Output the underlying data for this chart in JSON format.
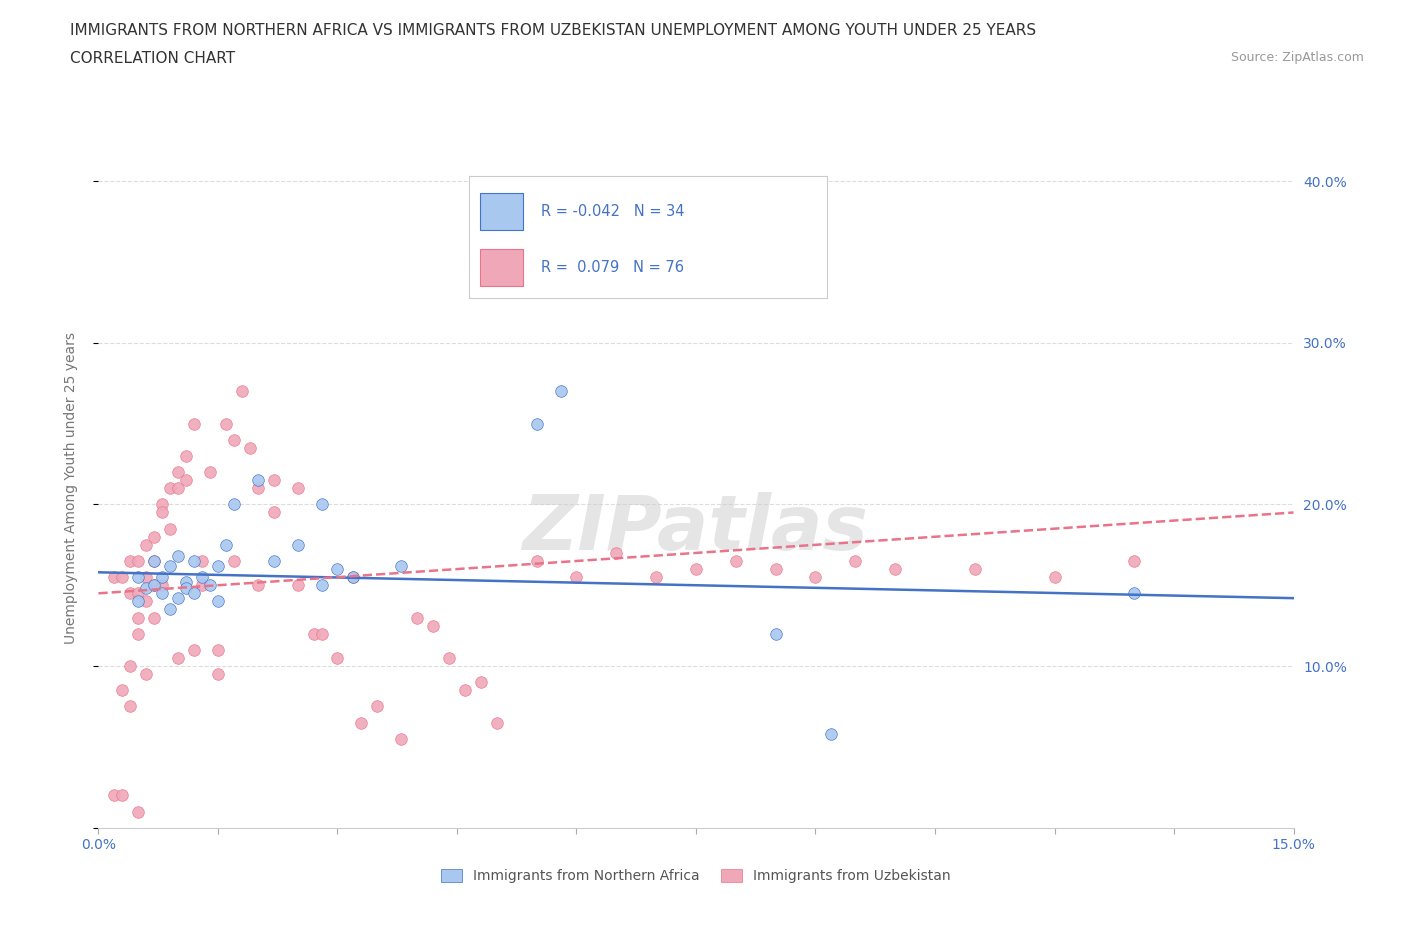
{
  "title_line1": "IMMIGRANTS FROM NORTHERN AFRICA VS IMMIGRANTS FROM UZBEKISTAN UNEMPLOYMENT AMONG YOUTH UNDER 25 YEARS",
  "title_line2": "CORRELATION CHART",
  "source_text": "Source: ZipAtlas.com",
  "ylabel_label": "Unemployment Among Youth under 25 years",
  "right_yticks": [
    "40.0%",
    "30.0%",
    "20.0%",
    "10.0%"
  ],
  "right_ytick_vals": [
    0.4,
    0.3,
    0.2,
    0.1
  ],
  "xmin": 0.0,
  "xmax": 0.15,
  "ymin": 0.0,
  "ymax": 0.42,
  "blue_color": "#a8c8f0",
  "pink_color": "#f0a8b8",
  "blue_line_color": "#4472c4",
  "pink_line_color": "#e8738a",
  "legend_R_blue": "-0.042",
  "legend_N_blue": "34",
  "legend_R_pink": " 0.079",
  "legend_N_pink": "76",
  "watermark": "ZIPatlas",
  "legend_label_blue": "Immigrants from Northern Africa",
  "legend_label_pink": "Immigrants from Uzbekistan",
  "blue_scatter_x": [
    0.005,
    0.005,
    0.006,
    0.007,
    0.007,
    0.008,
    0.008,
    0.009,
    0.009,
    0.01,
    0.01,
    0.011,
    0.011,
    0.012,
    0.012,
    0.013,
    0.014,
    0.015,
    0.015,
    0.016,
    0.017,
    0.02,
    0.022,
    0.025,
    0.028,
    0.028,
    0.03,
    0.032,
    0.038,
    0.055,
    0.058,
    0.085,
    0.092,
    0.13
  ],
  "blue_scatter_y": [
    0.155,
    0.14,
    0.148,
    0.165,
    0.15,
    0.145,
    0.155,
    0.162,
    0.135,
    0.168,
    0.142,
    0.152,
    0.148,
    0.165,
    0.145,
    0.155,
    0.15,
    0.162,
    0.14,
    0.175,
    0.2,
    0.215,
    0.165,
    0.175,
    0.15,
    0.2,
    0.16,
    0.155,
    0.162,
    0.25,
    0.27,
    0.12,
    0.058,
    0.145
  ],
  "pink_scatter_x": [
    0.002,
    0.002,
    0.003,
    0.003,
    0.003,
    0.004,
    0.004,
    0.004,
    0.004,
    0.005,
    0.005,
    0.005,
    0.005,
    0.005,
    0.006,
    0.006,
    0.006,
    0.006,
    0.007,
    0.007,
    0.007,
    0.007,
    0.008,
    0.008,
    0.008,
    0.009,
    0.009,
    0.01,
    0.01,
    0.01,
    0.011,
    0.011,
    0.012,
    0.012,
    0.013,
    0.013,
    0.014,
    0.015,
    0.015,
    0.016,
    0.017,
    0.017,
    0.018,
    0.019,
    0.02,
    0.02,
    0.022,
    0.022,
    0.025,
    0.025,
    0.027,
    0.028,
    0.03,
    0.032,
    0.033,
    0.035,
    0.038,
    0.04,
    0.042,
    0.044,
    0.046,
    0.048,
    0.05,
    0.055,
    0.06,
    0.065,
    0.07,
    0.075,
    0.08,
    0.085,
    0.09,
    0.095,
    0.1,
    0.11,
    0.12,
    0.13
  ],
  "pink_scatter_y": [
    0.155,
    0.02,
    0.155,
    0.02,
    0.085,
    0.165,
    0.145,
    0.1,
    0.075,
    0.165,
    0.145,
    0.13,
    0.12,
    0.01,
    0.175,
    0.155,
    0.14,
    0.095,
    0.18,
    0.165,
    0.15,
    0.13,
    0.2,
    0.195,
    0.15,
    0.21,
    0.185,
    0.22,
    0.21,
    0.105,
    0.23,
    0.215,
    0.25,
    0.11,
    0.165,
    0.15,
    0.22,
    0.11,
    0.095,
    0.25,
    0.24,
    0.165,
    0.27,
    0.235,
    0.21,
    0.15,
    0.215,
    0.195,
    0.21,
    0.15,
    0.12,
    0.12,
    0.105,
    0.155,
    0.065,
    0.075,
    0.055,
    0.13,
    0.125,
    0.105,
    0.085,
    0.09,
    0.065,
    0.165,
    0.155,
    0.17,
    0.155,
    0.16,
    0.165,
    0.16,
    0.155,
    0.165,
    0.16,
    0.16,
    0.155,
    0.165
  ],
  "blue_trend_x": [
    0.0,
    0.15
  ],
  "blue_trend_y": [
    0.158,
    0.142
  ],
  "pink_trend_x": [
    0.0,
    0.15
  ],
  "pink_trend_y": [
    0.145,
    0.195
  ],
  "title_fontsize": 11,
  "subtitle_fontsize": 11,
  "axis_label_fontsize": 10,
  "tick_fontsize": 10,
  "background_color": "#ffffff",
  "grid_color": "#dddddd"
}
